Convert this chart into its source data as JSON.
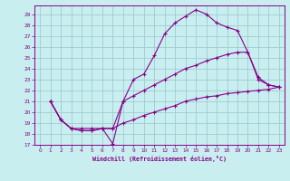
{
  "xlabel": "Windchill (Refroidissement éolien,°C)",
  "bg_color": "#c8eef0",
  "grid_color": "#a0ccd0",
  "line_color": "#880088",
  "xlim": [
    -0.5,
    23.5
  ],
  "ylim": [
    17,
    29.8
  ],
  "yticks": [
    17,
    18,
    19,
    20,
    21,
    22,
    23,
    24,
    25,
    26,
    27,
    28,
    29
  ],
  "xticks": [
    0,
    1,
    2,
    3,
    4,
    5,
    6,
    7,
    8,
    9,
    10,
    11,
    12,
    13,
    14,
    15,
    16,
    17,
    18,
    19,
    20,
    21,
    22,
    23
  ],
  "line1_x": [
    1,
    2,
    3,
    4,
    5,
    6,
    7,
    8,
    9,
    10,
    11,
    12,
    13,
    14,
    15,
    16,
    17,
    18,
    19,
    20,
    21,
    22,
    23
  ],
  "line1_y": [
    21.0,
    19.3,
    18.5,
    18.3,
    18.3,
    18.5,
    17.1,
    21.0,
    23.0,
    23.5,
    25.2,
    27.2,
    28.2,
    28.8,
    29.4,
    29.0,
    28.2,
    27.8,
    27.5,
    25.5,
    23.2,
    22.5,
    22.3
  ],
  "line2_x": [
    1,
    2,
    3,
    4,
    5,
    6,
    7,
    8,
    9,
    10,
    11,
    12,
    13,
    14,
    15,
    16,
    17,
    18,
    19,
    20,
    21,
    22,
    23
  ],
  "line2_y": [
    21.0,
    19.3,
    18.5,
    18.3,
    18.3,
    18.5,
    18.5,
    21.0,
    21.5,
    22.0,
    22.5,
    23.0,
    23.5,
    24.0,
    24.3,
    24.7,
    25.0,
    25.3,
    25.5,
    25.5,
    23.0,
    22.5,
    22.3
  ],
  "line3_x": [
    1,
    2,
    3,
    4,
    5,
    6,
    7,
    8,
    9,
    10,
    11,
    12,
    13,
    14,
    15,
    16,
    17,
    18,
    19,
    20,
    21,
    22,
    23
  ],
  "line3_y": [
    21.0,
    19.3,
    18.5,
    18.5,
    18.5,
    18.5,
    18.5,
    19.0,
    19.3,
    19.7,
    20.0,
    20.3,
    20.6,
    21.0,
    21.2,
    21.4,
    21.5,
    21.7,
    21.8,
    21.9,
    22.0,
    22.1,
    22.3
  ]
}
